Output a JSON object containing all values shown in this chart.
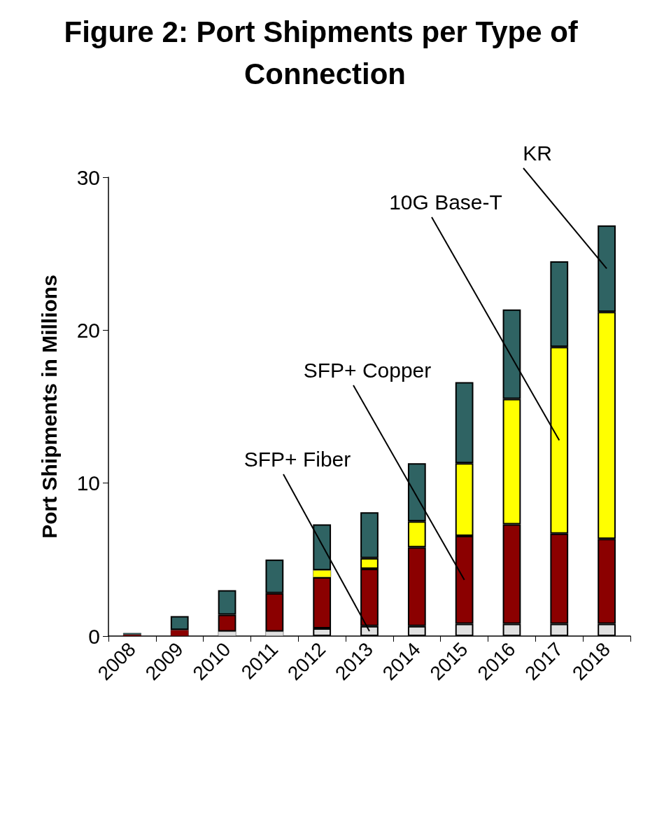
{
  "chart_data": {
    "type": "bar",
    "title": "Figure 2: Port Shipments per Type of Connection",
    "ylabel": "Port Shipments in Millions",
    "categories": [
      "2008",
      "2009",
      "2010",
      "2011",
      "2012",
      "2013",
      "2014",
      "2015",
      "2016",
      "2017",
      "2018"
    ],
    "stacked": true,
    "ylim": [
      0,
      30
    ],
    "yticks": [
      0,
      10,
      20,
      30
    ],
    "grid": false,
    "legend": false,
    "series": [
      {
        "name": "SFP+ Fiber",
        "color": "#e0e0e0",
        "values": [
          0,
          0,
          0.3,
          0.3,
          0.5,
          0.65,
          0.65,
          0.8,
          0.8,
          0.8,
          0.8
        ]
      },
      {
        "name": "SFP+ Copper",
        "color": "#8b0000",
        "values": [
          0.1,
          0.4,
          1.1,
          2.5,
          3.35,
          3.75,
          5.15,
          5.75,
          6.5,
          5.9,
          5.55
        ]
      },
      {
        "name": "10G Base-T",
        "color": "#ffff00",
        "values": [
          0,
          0,
          0,
          0,
          0.45,
          0.7,
          1.7,
          4.75,
          8.2,
          12.2,
          14.85
        ]
      },
      {
        "name": "KR",
        "color": "#2f6363",
        "values": [
          0.1,
          0.9,
          1.6,
          2.2,
          3.0,
          3.0,
          3.8,
          5.3,
          5.85,
          5.6,
          5.65
        ]
      }
    ]
  }
}
